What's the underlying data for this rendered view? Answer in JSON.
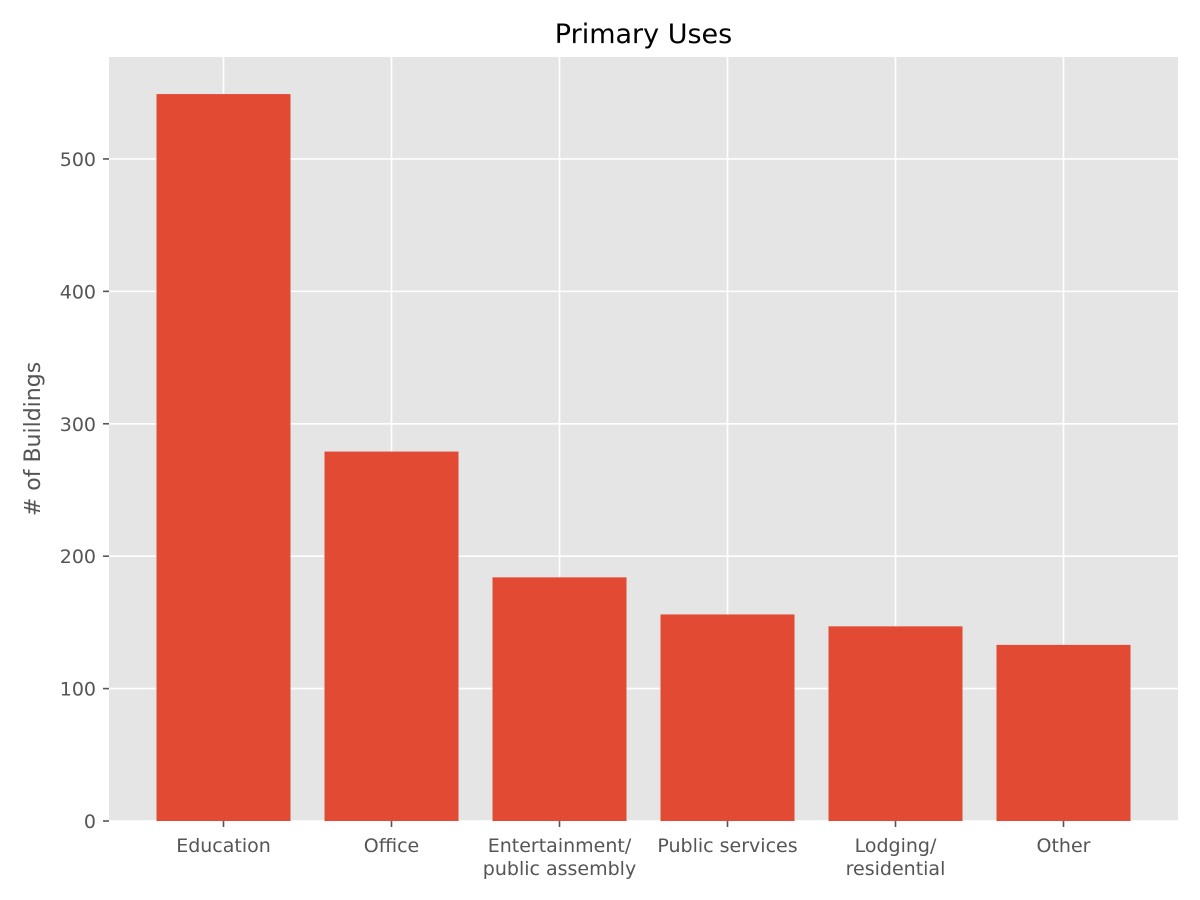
{
  "chart_data": {
    "type": "bar",
    "title": "Primary Uses",
    "xlabel": "",
    "ylabel": "# of Buildings",
    "categories": [
      [
        "Education"
      ],
      [
        "Office"
      ],
      [
        "Entertainment/",
        "public assembly"
      ],
      [
        "Public services"
      ],
      [
        "Lodging/",
        "residential"
      ],
      [
        "Other"
      ]
    ],
    "values": [
      549,
      279,
      184,
      156,
      147,
      133
    ],
    "ylim": [
      0,
      577
    ],
    "yticks": [
      0,
      100,
      200,
      300,
      400,
      500
    ],
    "grid": true,
    "legend": "none",
    "style": "ggplot",
    "colors": {
      "bar": "#E24A33",
      "plot_background": "#E5E5E5",
      "grid": "#FFFFFF",
      "tick_text": "#555555",
      "title_text": "#000000"
    }
  }
}
